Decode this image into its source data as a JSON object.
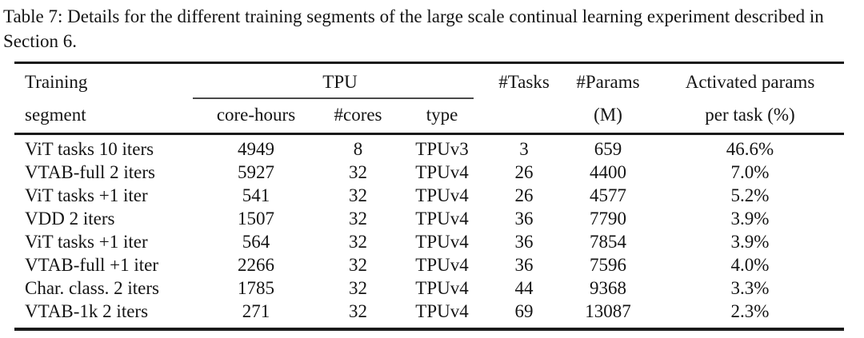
{
  "caption": "Table 7: Details for the different training segments of the large scale continual learning experiment described in Section 6.",
  "table": {
    "header": {
      "training_l1": "Training",
      "training_l2": "segment",
      "tpu_group": "TPU",
      "core_hours": "core-hours",
      "cores": "#cores",
      "type": "type",
      "tasks": "#Tasks",
      "params_l1": "#Params",
      "params_l2": "(M)",
      "activated_l1": "Activated params",
      "activated_l2": "per task (%)"
    },
    "rows": [
      {
        "segment": "ViT tasks 10 iters",
        "core_hours": "4949",
        "cores": "8",
        "type": "TPUv3",
        "tasks": "3",
        "params": "659",
        "activated": "46.6%"
      },
      {
        "segment": "VTAB-full 2 iters",
        "core_hours": "5927",
        "cores": "32",
        "type": "TPUv4",
        "tasks": "26",
        "params": "4400",
        "activated": "7.0%"
      },
      {
        "segment": "ViT tasks +1 iter",
        "core_hours": "541",
        "cores": "32",
        "type": "TPUv4",
        "tasks": "26",
        "params": "4577",
        "activated": "5.2%"
      },
      {
        "segment": "VDD 2 iters",
        "core_hours": "1507",
        "cores": "32",
        "type": "TPUv4",
        "tasks": "36",
        "params": "7790",
        "activated": "3.9%"
      },
      {
        "segment": "ViT tasks +1 iter",
        "core_hours": "564",
        "cores": "32",
        "type": "TPUv4",
        "tasks": "36",
        "params": "7854",
        "activated": "3.9%"
      },
      {
        "segment": "VTAB-full +1 iter",
        "core_hours": "2266",
        "cores": "32",
        "type": "TPUv4",
        "tasks": "36",
        "params": "7596",
        "activated": "4.0%"
      },
      {
        "segment": "Char. class. 2 iters",
        "core_hours": "1785",
        "cores": "32",
        "type": "TPUv4",
        "tasks": "44",
        "params": "9368",
        "activated": "3.3%"
      },
      {
        "segment": "VTAB-1k 2 iters",
        "core_hours": "271",
        "cores": "32",
        "type": "TPUv4",
        "tasks": "69",
        "params": "13087",
        "activated": "2.3%"
      }
    ],
    "colors": {
      "text": "#141414",
      "rule_heavy": "#1a1a1a",
      "rule_cmid": "#4a4a4a",
      "background": "#ffffff"
    }
  }
}
